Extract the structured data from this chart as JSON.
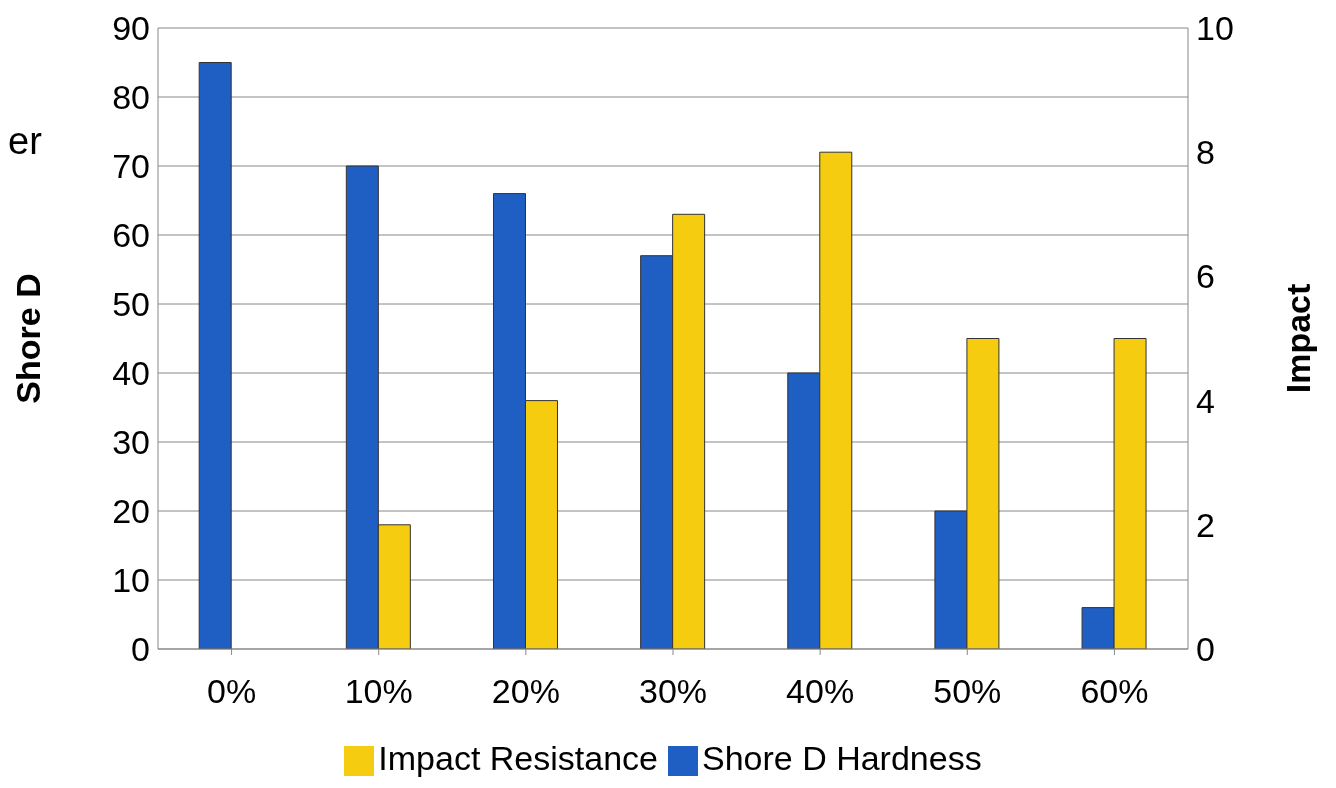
{
  "chart_data": {
    "type": "bar",
    "ylabel": "Shore D",
    "y2label": "Impact",
    "annotations": [
      "er"
    ],
    "categories": [
      "0%",
      "10%",
      "20%",
      "30%",
      "40%",
      "50%",
      "60%"
    ],
    "series": [
      {
        "name": "Shore D Hardness",
        "color": "#1f5fc4",
        "values": [
          85,
          70,
          66,
          57,
          40,
          20,
          6
        ]
      },
      {
        "name": "Impact Resistance",
        "color": "#f5cc10",
        "values": [
          null,
          2,
          4,
          7,
          8,
          5,
          5
        ],
        "axis": "y2"
      }
    ],
    "ylim": [
      0,
      90
    ],
    "yticks": [
      0,
      10,
      20,
      30,
      40,
      50,
      60,
      70,
      80,
      90
    ],
    "y2lim": [
      0,
      10
    ],
    "y2ticks": [
      0,
      2,
      4,
      6,
      8,
      10
    ],
    "grid": "y",
    "legend": "bottom"
  }
}
